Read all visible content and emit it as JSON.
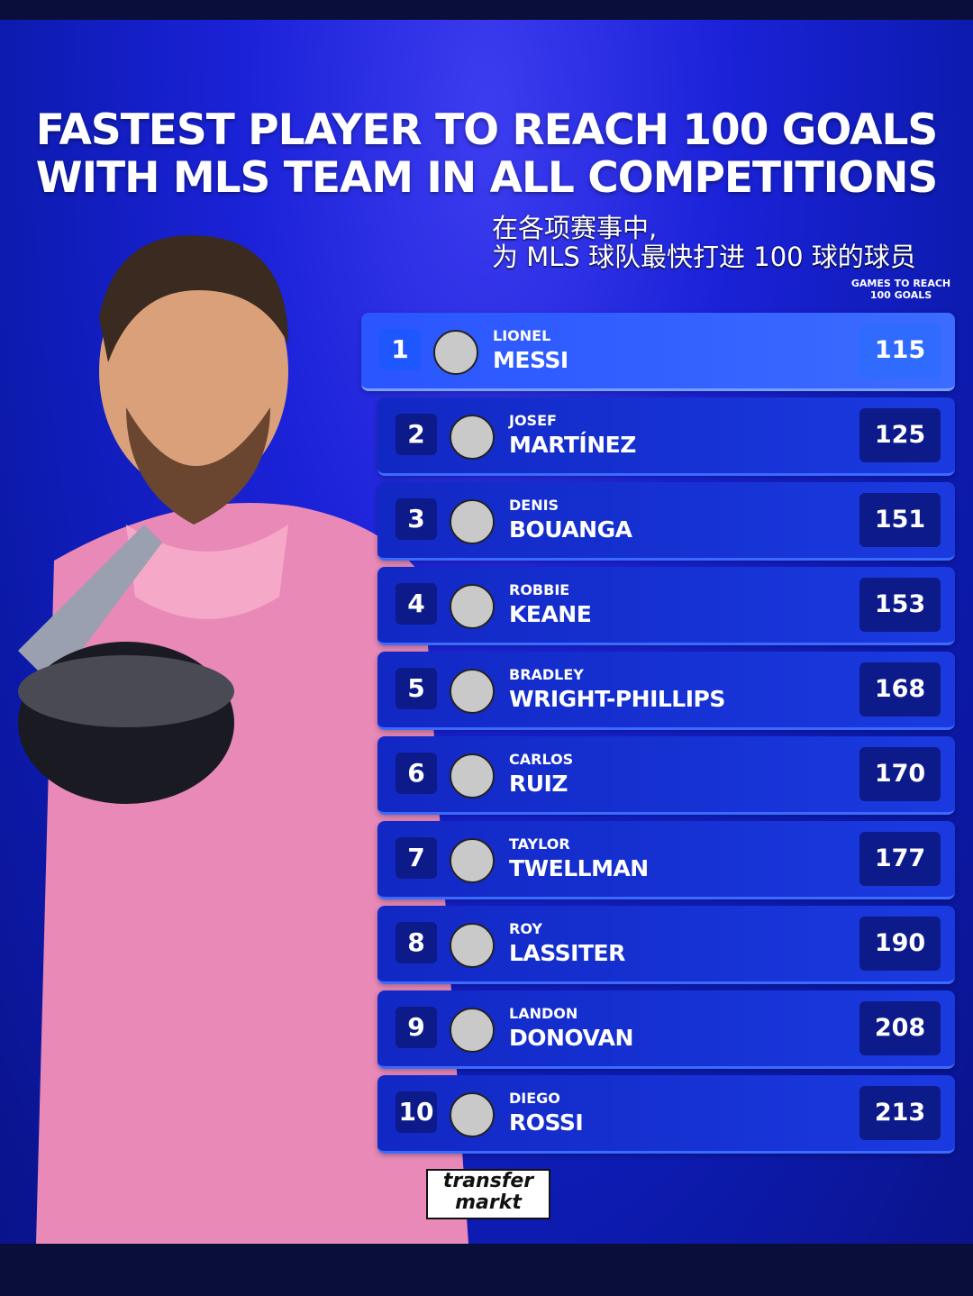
{
  "header": {
    "title_lines": [
      "FASTEST PLAYER TO REACH 100 GOALS",
      "WITH MLS TEAM IN ALL COMPETITIONS"
    ],
    "subtitle_lines": [
      "在各项赛事中,",
      "为 MLS 球队最快打进 100 球的球员"
    ],
    "column_header_lines": [
      "GAMES TO REACH",
      "100 GOALS"
    ]
  },
  "table": {
    "rows": [
      {
        "rank": 1,
        "first": "LIONEL",
        "last": "MESSI",
        "games": 115
      },
      {
        "rank": 2,
        "first": "JOSEF",
        "last": "MARTÍNEZ",
        "games": 125
      },
      {
        "rank": 3,
        "first": "DENIS",
        "last": "BOUANGA",
        "games": 151
      },
      {
        "rank": 4,
        "first": "ROBBIE",
        "last": "KEANE",
        "games": 153
      },
      {
        "rank": 5,
        "first": "BRADLEY",
        "last": "WRIGHT-PHILLIPS",
        "games": 168
      },
      {
        "rank": 6,
        "first": "CARLOS",
        "last": "RUIZ",
        "games": 170
      },
      {
        "rank": 7,
        "first": "TAYLOR",
        "last": "TWELLMAN",
        "games": 177
      },
      {
        "rank": 8,
        "first": "ROY",
        "last": "LASSITER",
        "games": 190
      },
      {
        "rank": 9,
        "first": "LANDON",
        "last": "DONOVAN",
        "games": 208
      },
      {
        "rank": 10,
        "first": "DIEGO",
        "last": "ROSSI",
        "games": 213
      }
    ]
  },
  "footer": {
    "logo_lines": [
      "transfer",
      "markt"
    ]
  }
}
